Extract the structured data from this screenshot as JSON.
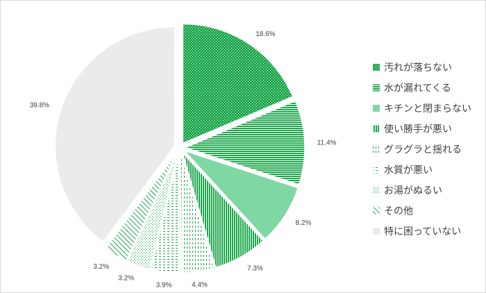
{
  "chart_data": {
    "type": "pie",
    "categories": [
      "汚れが落ちない",
      "水が漏れてくる",
      "キチンと閉まらない",
      "使い勝手が悪い",
      "グラグラと揺れる",
      "水質が悪い",
      "お湯がぬるい",
      "その他",
      "特に困っていない"
    ],
    "values": [
      18.6,
      11.4,
      8.2,
      7.3,
      4.4,
      3.9,
      3.2,
      3.2,
      39.8
    ],
    "data_labels": [
      "18.6%",
      "11.4%",
      "8.2%",
      "7.3%",
      "4.4%",
      "3.9%",
      "3.2%",
      "3.2%",
      "39.8%"
    ],
    "legend_position": "right",
    "start_angle_deg": 0,
    "direction": "clockwise",
    "exploded": true,
    "colors": {
      "green_dark": "#1aa64a",
      "green_light": "#7fd7a4",
      "gray": "#ebebeb",
      "text": "#404040"
    }
  }
}
